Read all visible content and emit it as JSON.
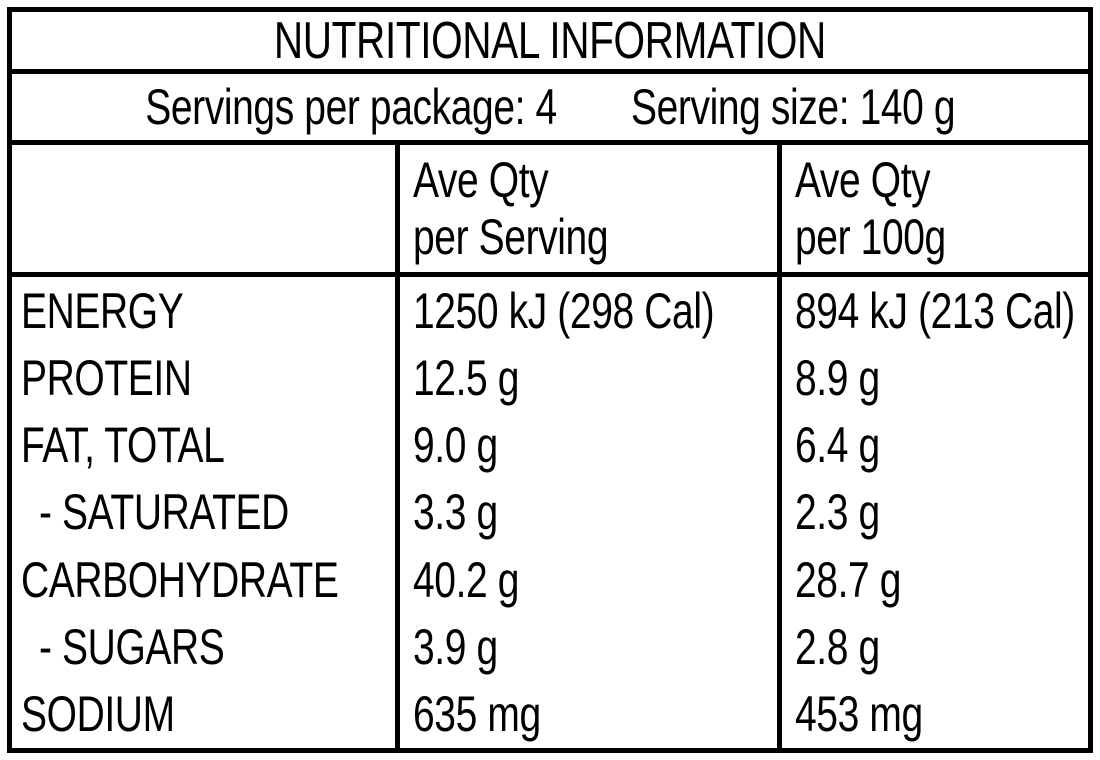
{
  "colors": {
    "text": "#000000",
    "background": "#ffffff",
    "border": "#000000"
  },
  "title": "NUTRITIONAL INFORMATION",
  "servings": {
    "per_package": "Servings per package: 4",
    "serving_size": "Serving size: 140 g"
  },
  "header": {
    "nutrient_col": "",
    "per_serving_line1": "Ave Qty",
    "per_serving_line2": "per Serving",
    "per_100g_line1": "Ave Qty",
    "per_100g_line2": "per 100g"
  },
  "rows": [
    {
      "name": "ENERGY",
      "per_serving": "1250 kJ (298 Cal)",
      "per_100g": "894 kJ (213 Cal)"
    },
    {
      "name": "PROTEIN",
      "per_serving": "12.5 g",
      "per_100g": "8.9 g"
    },
    {
      "name": "FAT, TOTAL",
      "per_serving": "9.0 g",
      "per_100g": "6.4 g"
    },
    {
      "name": "- SATURATED",
      "per_serving": "3.3 g",
      "per_100g": "2.3 g"
    },
    {
      "name": "CARBOHYDRATE",
      "per_serving": "40.2 g",
      "per_100g": "28.7 g"
    },
    {
      "name": "- SUGARS",
      "per_serving": "3.9 g",
      "per_100g": "2.8 g"
    },
    {
      "name": "SODIUM",
      "per_serving": "635 mg",
      "per_100g": "453 mg"
    }
  ]
}
